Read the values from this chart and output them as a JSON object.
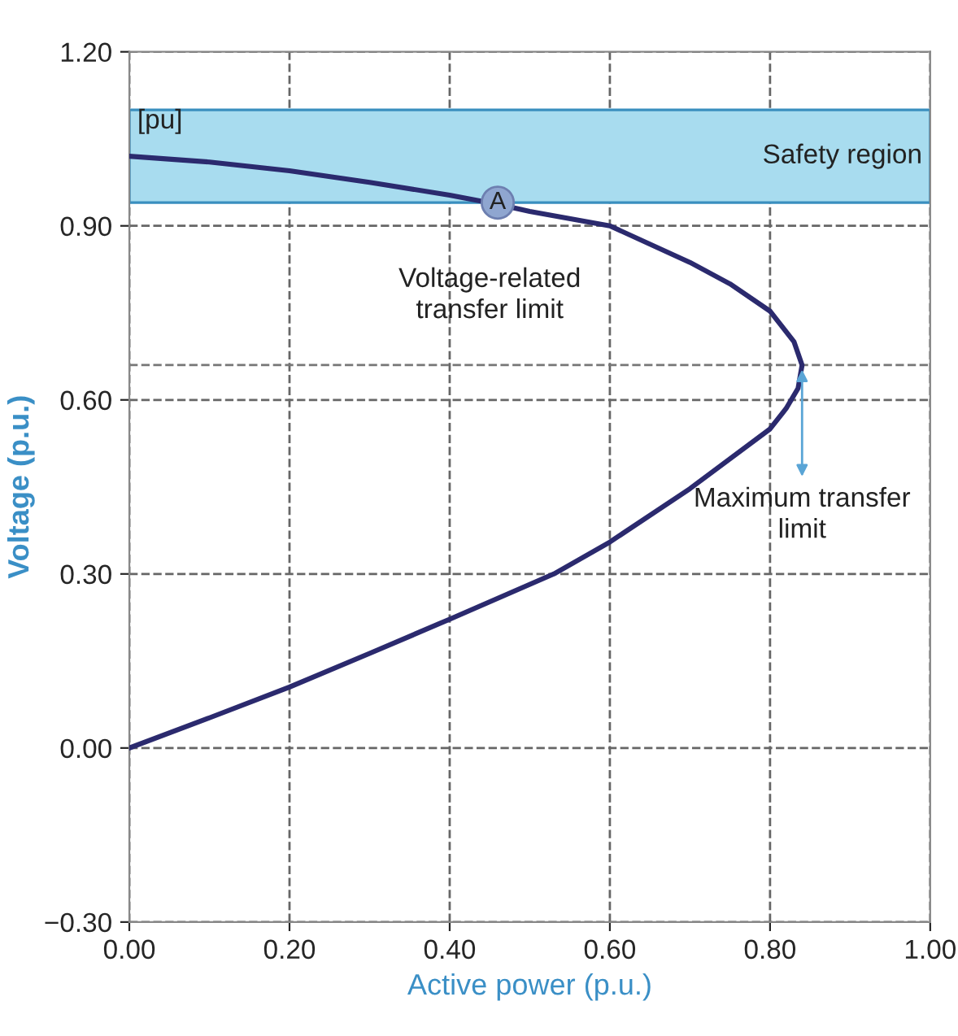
{
  "chart_data": {
    "type": "line",
    "xlabel": "Active power (p.u.)",
    "ylabel": "Voltage (p.u.)",
    "xlim": [
      0,
      1.0
    ],
    "xticks": [
      {
        "value": 0,
        "label": "0.00"
      },
      {
        "value": 0.2,
        "label": "0.20"
      },
      {
        "value": 0.4,
        "label": "0.40"
      },
      {
        "value": 0.6,
        "label": "0.60"
      },
      {
        "value": 0.8,
        "label": "0.80"
      },
      {
        "value": 1.0,
        "label": "1.00"
      }
    ],
    "ylim": [
      -0.3,
      1.2
    ],
    "yticks": [
      {
        "value": -0.3,
        "label": "−0.30"
      },
      {
        "value": 0,
        "label": "0.00"
      },
      {
        "value": 0.3,
        "label": "0.30"
      },
      {
        "value": 0.6,
        "label": "0.60"
      },
      {
        "value": 0.9,
        "label": "0.90"
      },
      {
        "value": 1.2,
        "label": "1.20"
      }
    ],
    "grid": true,
    "line_style": "solid",
    "series": [
      {
        "color": "#2b2a6e",
        "x": [
          0,
          0.1,
          0.2,
          0.3,
          0.4,
          0.46,
          0.5,
          0.6,
          0.7,
          0.75,
          0.8,
          0.83,
          0.84,
          0.835,
          0.82,
          0.8,
          0.7,
          0.6,
          0.53,
          0.4,
          0.3,
          0.2,
          0.1,
          0
        ],
        "values": [
          1.02,
          1.01,
          0.995,
          0.975,
          0.953,
          0.937,
          0.925,
          0.9,
          0.837,
          0.8,
          0.753,
          0.7,
          0.66,
          0.62,
          0.585,
          0.55,
          0.447,
          0.355,
          0.3,
          0.222,
          0.163,
          0.105,
          0.052,
          0
        ]
      },
      {
        "type": "scatter",
        "marker": "circle",
        "color": "#8fa6d0",
        "x": [
          0.46
        ],
        "values": [
          0.94
        ]
      }
    ],
    "bands": [
      {
        "axis": "y",
        "from": 0.94,
        "to": 1.1,
        "label": "Safety region",
        "color": "#a8dcef"
      }
    ],
    "ref_lines": [
      {
        "axis": "y",
        "value": 0.66,
        "color": "#777777",
        "line_style": "dashed"
      }
    ],
    "annotations": [
      {
        "text": "A",
        "x": 0.46,
        "y": 0.94
      },
      "[pu]",
      "Voltage-related\ntransfer limit",
      {
        "text": "Maximum transfer\nlimit",
        "x": 0.84,
        "y": 0.66
      }
    ]
  }
}
